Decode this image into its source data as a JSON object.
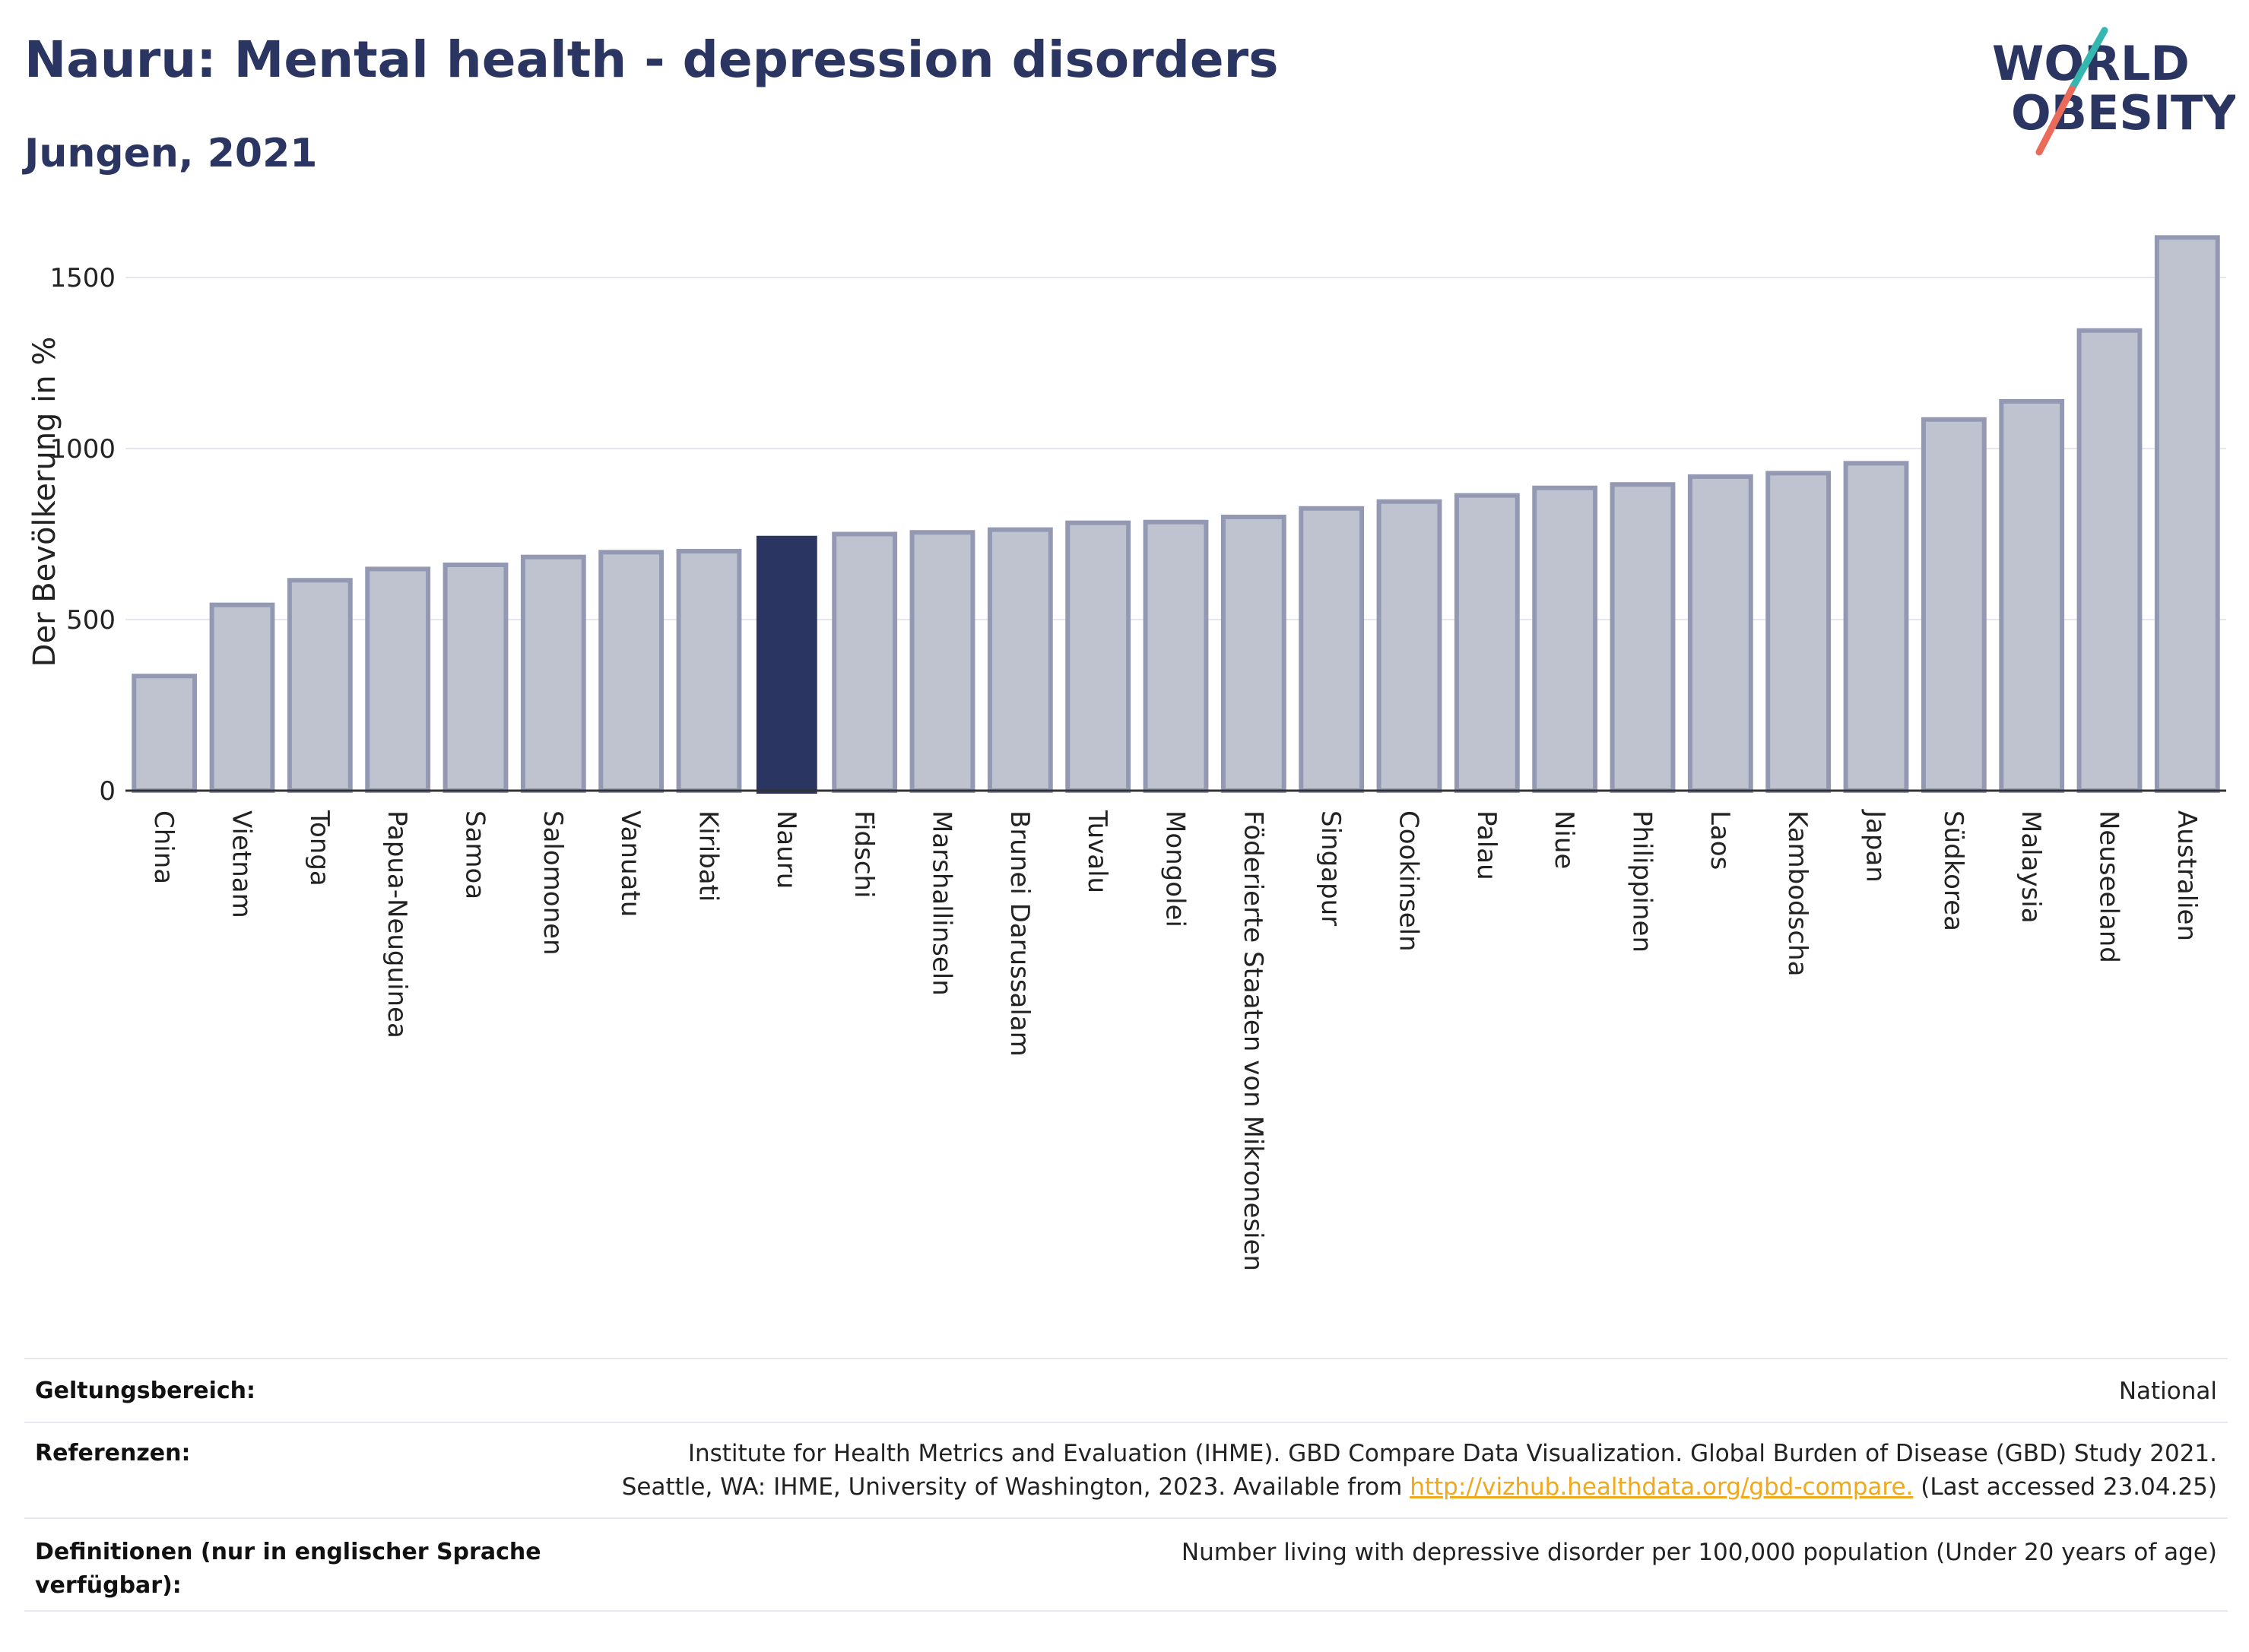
{
  "header": {
    "title": "Nauru: Mental health - depression disorders",
    "subtitle": "Jungen, 2021"
  },
  "logo": {
    "line1": "WORLD",
    "line2": "OBESITY"
  },
  "chart_data": {
    "type": "bar",
    "ylabel": "Der Bevölkerung in %",
    "ylim": [
      0,
      1700
    ],
    "yticks": [
      0,
      500,
      1000,
      1500
    ],
    "grid": true,
    "highlight": "Nauru",
    "categories": [
      "China",
      "Vietnam",
      "Tonga",
      "Papua-Neuguinea",
      "Samoa",
      "Salomonen",
      "Vanuatu",
      "Kiribati",
      "Nauru",
      "Fidschi",
      "Marshallinseln",
      "Brunei Darussalam",
      "Tuvalu",
      "Mongolei",
      "Föderierte Staaten von Mikronesien",
      "Singapur",
      "Cookinseln",
      "Palau",
      "Niue",
      "Philippinen",
      "Laos",
      "Kambodscha",
      "Japan",
      "Südkorea",
      "Malaysia",
      "Neuseeland",
      "Australien"
    ],
    "values": [
      335,
      543,
      615,
      648,
      660,
      683,
      697,
      700,
      745,
      750,
      755,
      763,
      783,
      785,
      800,
      825,
      845,
      863,
      885,
      895,
      918,
      928,
      957,
      1085,
      1138,
      1345,
      1617
    ]
  },
  "colors": {
    "bar": "#bfc3d0",
    "bar_edge": "#9499b3",
    "highlight": "#2b3561",
    "grid": "#e4e7ee",
    "axis": "#333333"
  },
  "info": {
    "scope_label": "Geltungsbereich:",
    "scope_value": "National",
    "refs_label": "Referenzen:",
    "refs_line1": "Institute for Health Metrics and Evaluation (IHME). GBD Compare Data Visualization. Global Burden of Disease (GBD) Study 2021.",
    "refs_line2_pre": "Seattle, WA: IHME, University of Washington, 2023. Available from ",
    "refs_link": "http://vizhub.healthdata.org/gbd-compare.",
    "refs_line2_post": " (Last accessed 23.04.25)",
    "defs_label": "Definitionen (nur in englischer Sprache verfügbar):",
    "defs_value": "Number living with depressive disorder per 100,000 population (Under 20 years of age)"
  }
}
